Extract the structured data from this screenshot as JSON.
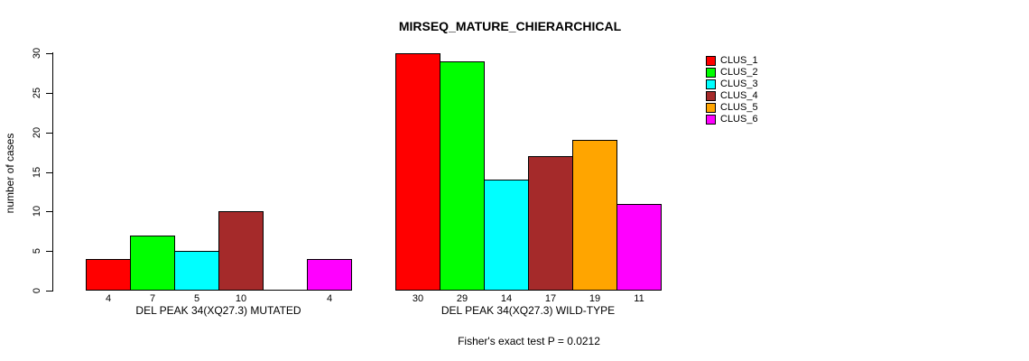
{
  "chart_data": {
    "type": "bar",
    "title": "MIRSEQ_MATURE_CHIERARCHICAL",
    "ylabel": "number of cases",
    "ylim": [
      0,
      30
    ],
    "yticks": [
      0,
      5,
      10,
      15,
      20,
      25,
      30
    ],
    "grid": false,
    "legend_position": "right",
    "clusters": [
      {
        "label": "CLUS_1",
        "color": "#FF0000"
      },
      {
        "label": "CLUS_2",
        "color": "#00FF00"
      },
      {
        "label": "CLUS_3",
        "color": "#00FFFF"
      },
      {
        "label": "CLUS_4",
        "color": "#A52A2A"
      },
      {
        "label": "CLUS_5",
        "color": "#FFA500"
      },
      {
        "label": "CLUS_6",
        "color": "#FF00FF"
      }
    ],
    "groups": [
      {
        "key": "mutated",
        "label": "DEL PEAK 34(XQ27.3) MUTATED",
        "values": [
          4,
          7,
          5,
          10,
          0,
          4
        ],
        "bar_labels": [
          "4",
          "7",
          "5",
          "10",
          "",
          "4"
        ]
      },
      {
        "key": "wild-type",
        "label": "DEL PEAK 34(XQ27.3) WILD-TYPE",
        "values": [
          30,
          29,
          14,
          17,
          19,
          11
        ],
        "bar_labels": [
          "30",
          "29",
          "14",
          "17",
          "19",
          "11"
        ]
      }
    ],
    "footnote": "Fisher's exact test P = 0.0212",
    "axis_color": "#000000",
    "text_color": "#000000",
    "background": "#FFFFFF"
  }
}
